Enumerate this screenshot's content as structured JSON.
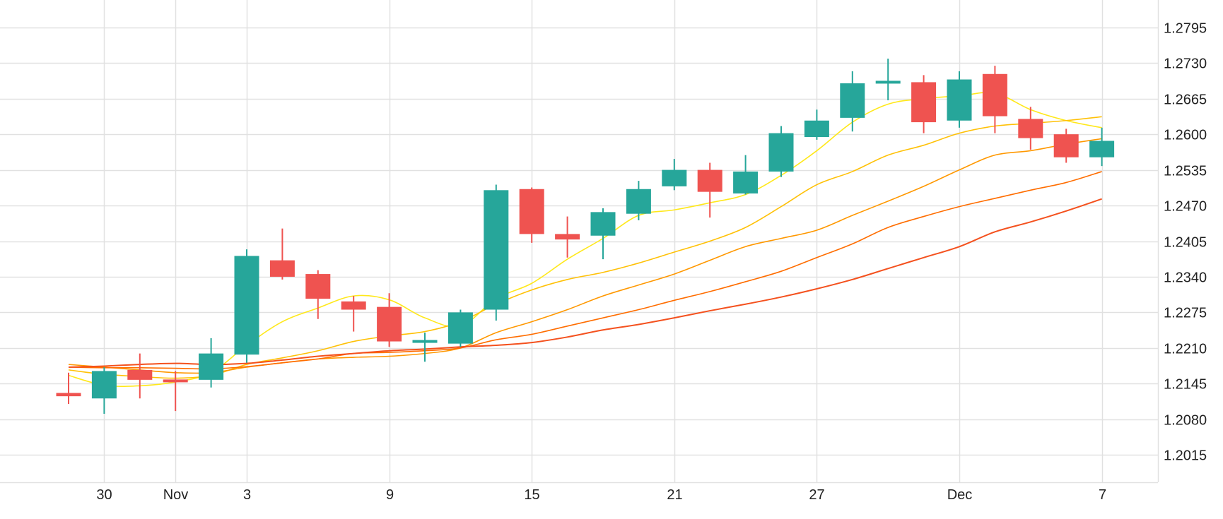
{
  "chart_data": {
    "type": "candlestick",
    "title": "",
    "xlabel": "",
    "ylabel": "",
    "ylim": [
      1.1965,
      1.2845
    ],
    "grid": true,
    "legend": "none",
    "y_ticks": [
      "1.2795",
      "1.2730",
      "1.2665",
      "1.2600",
      "1.2535",
      "1.2470",
      "1.2405",
      "1.2340",
      "1.2275",
      "1.2210",
      "1.2145",
      "1.2080",
      "1.2015"
    ],
    "x_ticks": [
      {
        "label": "30",
        "index": 1
      },
      {
        "label": "Nov",
        "index": 3
      },
      {
        "label": "3",
        "index": 5
      },
      {
        "label": "9",
        "index": 9
      },
      {
        "label": "15",
        "index": 13
      },
      {
        "label": "21",
        "index": 17
      },
      {
        "label": "27",
        "index": 21
      },
      {
        "label": "Dec",
        "index": 25
      },
      {
        "label": "7",
        "index": 29
      }
    ],
    "colors": {
      "up": "#26a69a",
      "down": "#ef5350",
      "grid": "#e1e1e1"
    },
    "candles": [
      {
        "o": 1.2128,
        "h": 1.2165,
        "l": 1.2108,
        "c": 1.2122
      },
      {
        "o": 1.2118,
        "h": 1.2175,
        "l": 1.209,
        "c": 1.2168
      },
      {
        "o": 1.217,
        "h": 1.22,
        "l": 1.2118,
        "c": 1.2152
      },
      {
        "o": 1.2152,
        "h": 1.2168,
        "l": 1.2095,
        "c": 1.2148
      },
      {
        "o": 1.2152,
        "h": 1.2228,
        "l": 1.2138,
        "c": 1.22
      },
      {
        "o": 1.2198,
        "h": 1.239,
        "l": 1.2183,
        "c": 1.2378
      },
      {
        "o": 1.237,
        "h": 1.2428,
        "l": 1.2335,
        "c": 1.234
      },
      {
        "o": 1.2345,
        "h": 1.2352,
        "l": 1.2263,
        "c": 1.23
      },
      {
        "o": 1.2295,
        "h": 1.2305,
        "l": 1.224,
        "c": 1.228
      },
      {
        "o": 1.2285,
        "h": 1.231,
        "l": 1.2212,
        "c": 1.2222
      },
      {
        "o": 1.2222,
        "h": 1.2238,
        "l": 1.2185,
        "c": 1.2222
      },
      {
        "o": 1.2218,
        "h": 1.228,
        "l": 1.2212,
        "c": 1.2275
      },
      {
        "o": 1.228,
        "h": 1.2508,
        "l": 1.226,
        "c": 1.2498
      },
      {
        "o": 1.25,
        "h": 1.2503,
        "l": 1.2402,
        "c": 1.2418
      },
      {
        "o": 1.2418,
        "h": 1.245,
        "l": 1.2375,
        "c": 1.2408
      },
      {
        "o": 1.2415,
        "h": 1.2465,
        "l": 1.2372,
        "c": 1.2458
      },
      {
        "o": 1.2455,
        "h": 1.2515,
        "l": 1.2443,
        "c": 1.25
      },
      {
        "o": 1.2505,
        "h": 1.2555,
        "l": 1.2498,
        "c": 1.2535
      },
      {
        "o": 1.2535,
        "h": 1.2548,
        "l": 1.2448,
        "c": 1.2495
      },
      {
        "o": 1.2492,
        "h": 1.2562,
        "l": 1.249,
        "c": 1.2532
      },
      {
        "o": 1.2532,
        "h": 1.2615,
        "l": 1.2522,
        "c": 1.2602
      },
      {
        "o": 1.2595,
        "h": 1.2645,
        "l": 1.259,
        "c": 1.2625
      },
      {
        "o": 1.263,
        "h": 1.2715,
        "l": 1.2605,
        "c": 1.2693
      },
      {
        "o": 1.2695,
        "h": 1.2738,
        "l": 1.2662,
        "c": 1.2695
      },
      {
        "o": 1.2695,
        "h": 1.2708,
        "l": 1.2602,
        "c": 1.2622
      },
      {
        "o": 1.2625,
        "h": 1.2715,
        "l": 1.2612,
        "c": 1.27
      },
      {
        "o": 1.271,
        "h": 1.2725,
        "l": 1.2602,
        "c": 1.2633
      },
      {
        "o": 1.2628,
        "h": 1.265,
        "l": 1.2572,
        "c": 1.2593
      },
      {
        "o": 1.26,
        "h": 1.261,
        "l": 1.2548,
        "c": 1.2558
      },
      {
        "o": 1.2558,
        "h": 1.2612,
        "l": 1.2542,
        "c": 1.2588
      }
    ],
    "series": [
      {
        "color": "#ffe81a",
        "width": 1.6,
        "values": [
          1.216,
          1.2142,
          1.2141,
          1.2148,
          1.2165,
          1.2215,
          1.2258,
          1.2283,
          1.2305,
          1.2298,
          1.2265,
          1.225,
          1.23,
          1.2328,
          1.2372,
          1.241,
          1.2452,
          1.2462,
          1.2475,
          1.249,
          1.2525,
          1.257,
          1.2622,
          1.2655,
          1.2665,
          1.267,
          1.2675,
          1.2645,
          1.2625,
          1.2612
        ]
      },
      {
        "color": "#ffc107",
        "width": 1.6,
        "values": [
          1.217,
          1.2162,
          1.2158,
          1.2155,
          1.216,
          1.218,
          1.2192,
          1.2205,
          1.2222,
          1.2232,
          1.224,
          1.2258,
          1.229,
          1.2316,
          1.2335,
          1.2348,
          1.2365,
          1.2385,
          1.2405,
          1.243,
          1.2468,
          1.2508,
          1.2532,
          1.2562,
          1.258,
          1.2602,
          1.2615,
          1.262,
          1.2625,
          1.2632
        ]
      },
      {
        "color": "#ff9800",
        "width": 1.6,
        "values": [
          1.218,
          1.2175,
          1.217,
          1.2165,
          1.2165,
          1.2175,
          1.2183,
          1.219,
          1.2193,
          1.2195,
          1.22,
          1.221,
          1.2238,
          1.2258,
          1.228,
          1.2305,
          1.2325,
          1.2345,
          1.237,
          1.2395,
          1.241,
          1.2425,
          1.2452,
          1.2478,
          1.2505,
          1.2535,
          1.2562,
          1.257,
          1.2582,
          1.2592
        ]
      },
      {
        "color": "#ff6d00",
        "width": 1.6,
        "values": [
          1.2175,
          1.2174,
          1.2174,
          1.2173,
          1.2172,
          1.2176,
          1.2183,
          1.219,
          1.22,
          1.2202,
          1.2205,
          1.221,
          1.2225,
          1.2235,
          1.225,
          1.2265,
          1.228,
          1.2297,
          1.2313,
          1.2331,
          1.235,
          1.2375,
          1.24,
          1.243,
          1.245,
          1.2468,
          1.2483,
          1.2498,
          1.2512,
          1.2532
        ]
      },
      {
        "color": "#f4511e",
        "width": 2.0,
        "values": [
          1.2175,
          1.2177,
          1.218,
          1.2182,
          1.218,
          1.2182,
          1.2188,
          1.2195,
          1.22,
          1.2205,
          1.2208,
          1.2212,
          1.2215,
          1.222,
          1.223,
          1.2243,
          1.2253,
          1.2265,
          1.2278,
          1.229,
          1.2303,
          1.2318,
          1.2335,
          1.2355,
          1.2375,
          1.2395,
          1.2422,
          1.244,
          1.246,
          1.2482
        ]
      }
    ]
  }
}
